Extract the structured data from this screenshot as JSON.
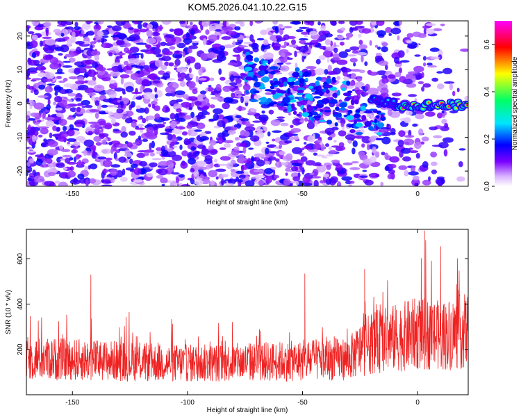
{
  "title": "KOM5.2026.041.10.22.G15",
  "chart_data": [
    {
      "type": "heatmap",
      "xlabel": "Height of straight line (km)",
      "ylabel": "Frequency (Hz)",
      "xlim": [
        -170,
        22
      ],
      "ylim": [
        -24.5,
        24.5
      ],
      "xticks": [
        -150,
        -100,
        -50,
        0
      ],
      "yticks": [
        -20,
        -10,
        0,
        10,
        20
      ],
      "colorbar": {
        "label": "Normalized spectral amplitude",
        "range": [
          0,
          0.7
        ],
        "ticks": [
          "0.0",
          "0.2",
          "0.4",
          "0.6"
        ],
        "colormap": [
          "#ffffff",
          "#d9b3ff",
          "#7a00ff",
          "#0000ff",
          "#00e5ff",
          "#00ff66",
          "#ffff00",
          "#ff0000",
          "#ff00ff"
        ]
      },
      "features": {
        "background_noise_level": 0.12,
        "signal_line_frequency_hz": -0.5,
        "signal_line_start_km": -20,
        "signal_line_end_km": 22,
        "peak_amplitude": 0.68
      }
    },
    {
      "type": "line",
      "xlabel": "Height of straight line (km)",
      "ylabel": "SNR (10 * v/v)",
      "xlim": [
        -170,
        22
      ],
      "ylim": [
        0,
        730
      ],
      "xticks": [
        -150,
        -100,
        -50,
        0
      ],
      "yticks": [
        200,
        400,
        600
      ],
      "color": "#ee2222",
      "series": [
        {
          "x": [
            -170,
            -150,
            -130,
            -110,
            -90,
            -70,
            -50,
            -30,
            -20,
            -10,
            0,
            10,
            20
          ],
          "values": [
            160,
            155,
            150,
            140,
            140,
            145,
            150,
            160,
            230,
            250,
            270,
            260,
            280
          ]
        }
      ],
      "notable_peaks": [
        {
          "x": -142,
          "y": 530
        },
        {
          "x": -49,
          "y": 535
        },
        {
          "x": -23,
          "y": 555
        },
        {
          "x": 3,
          "y": 725
        },
        {
          "x": 10,
          "y": 655
        }
      ]
    }
  ]
}
